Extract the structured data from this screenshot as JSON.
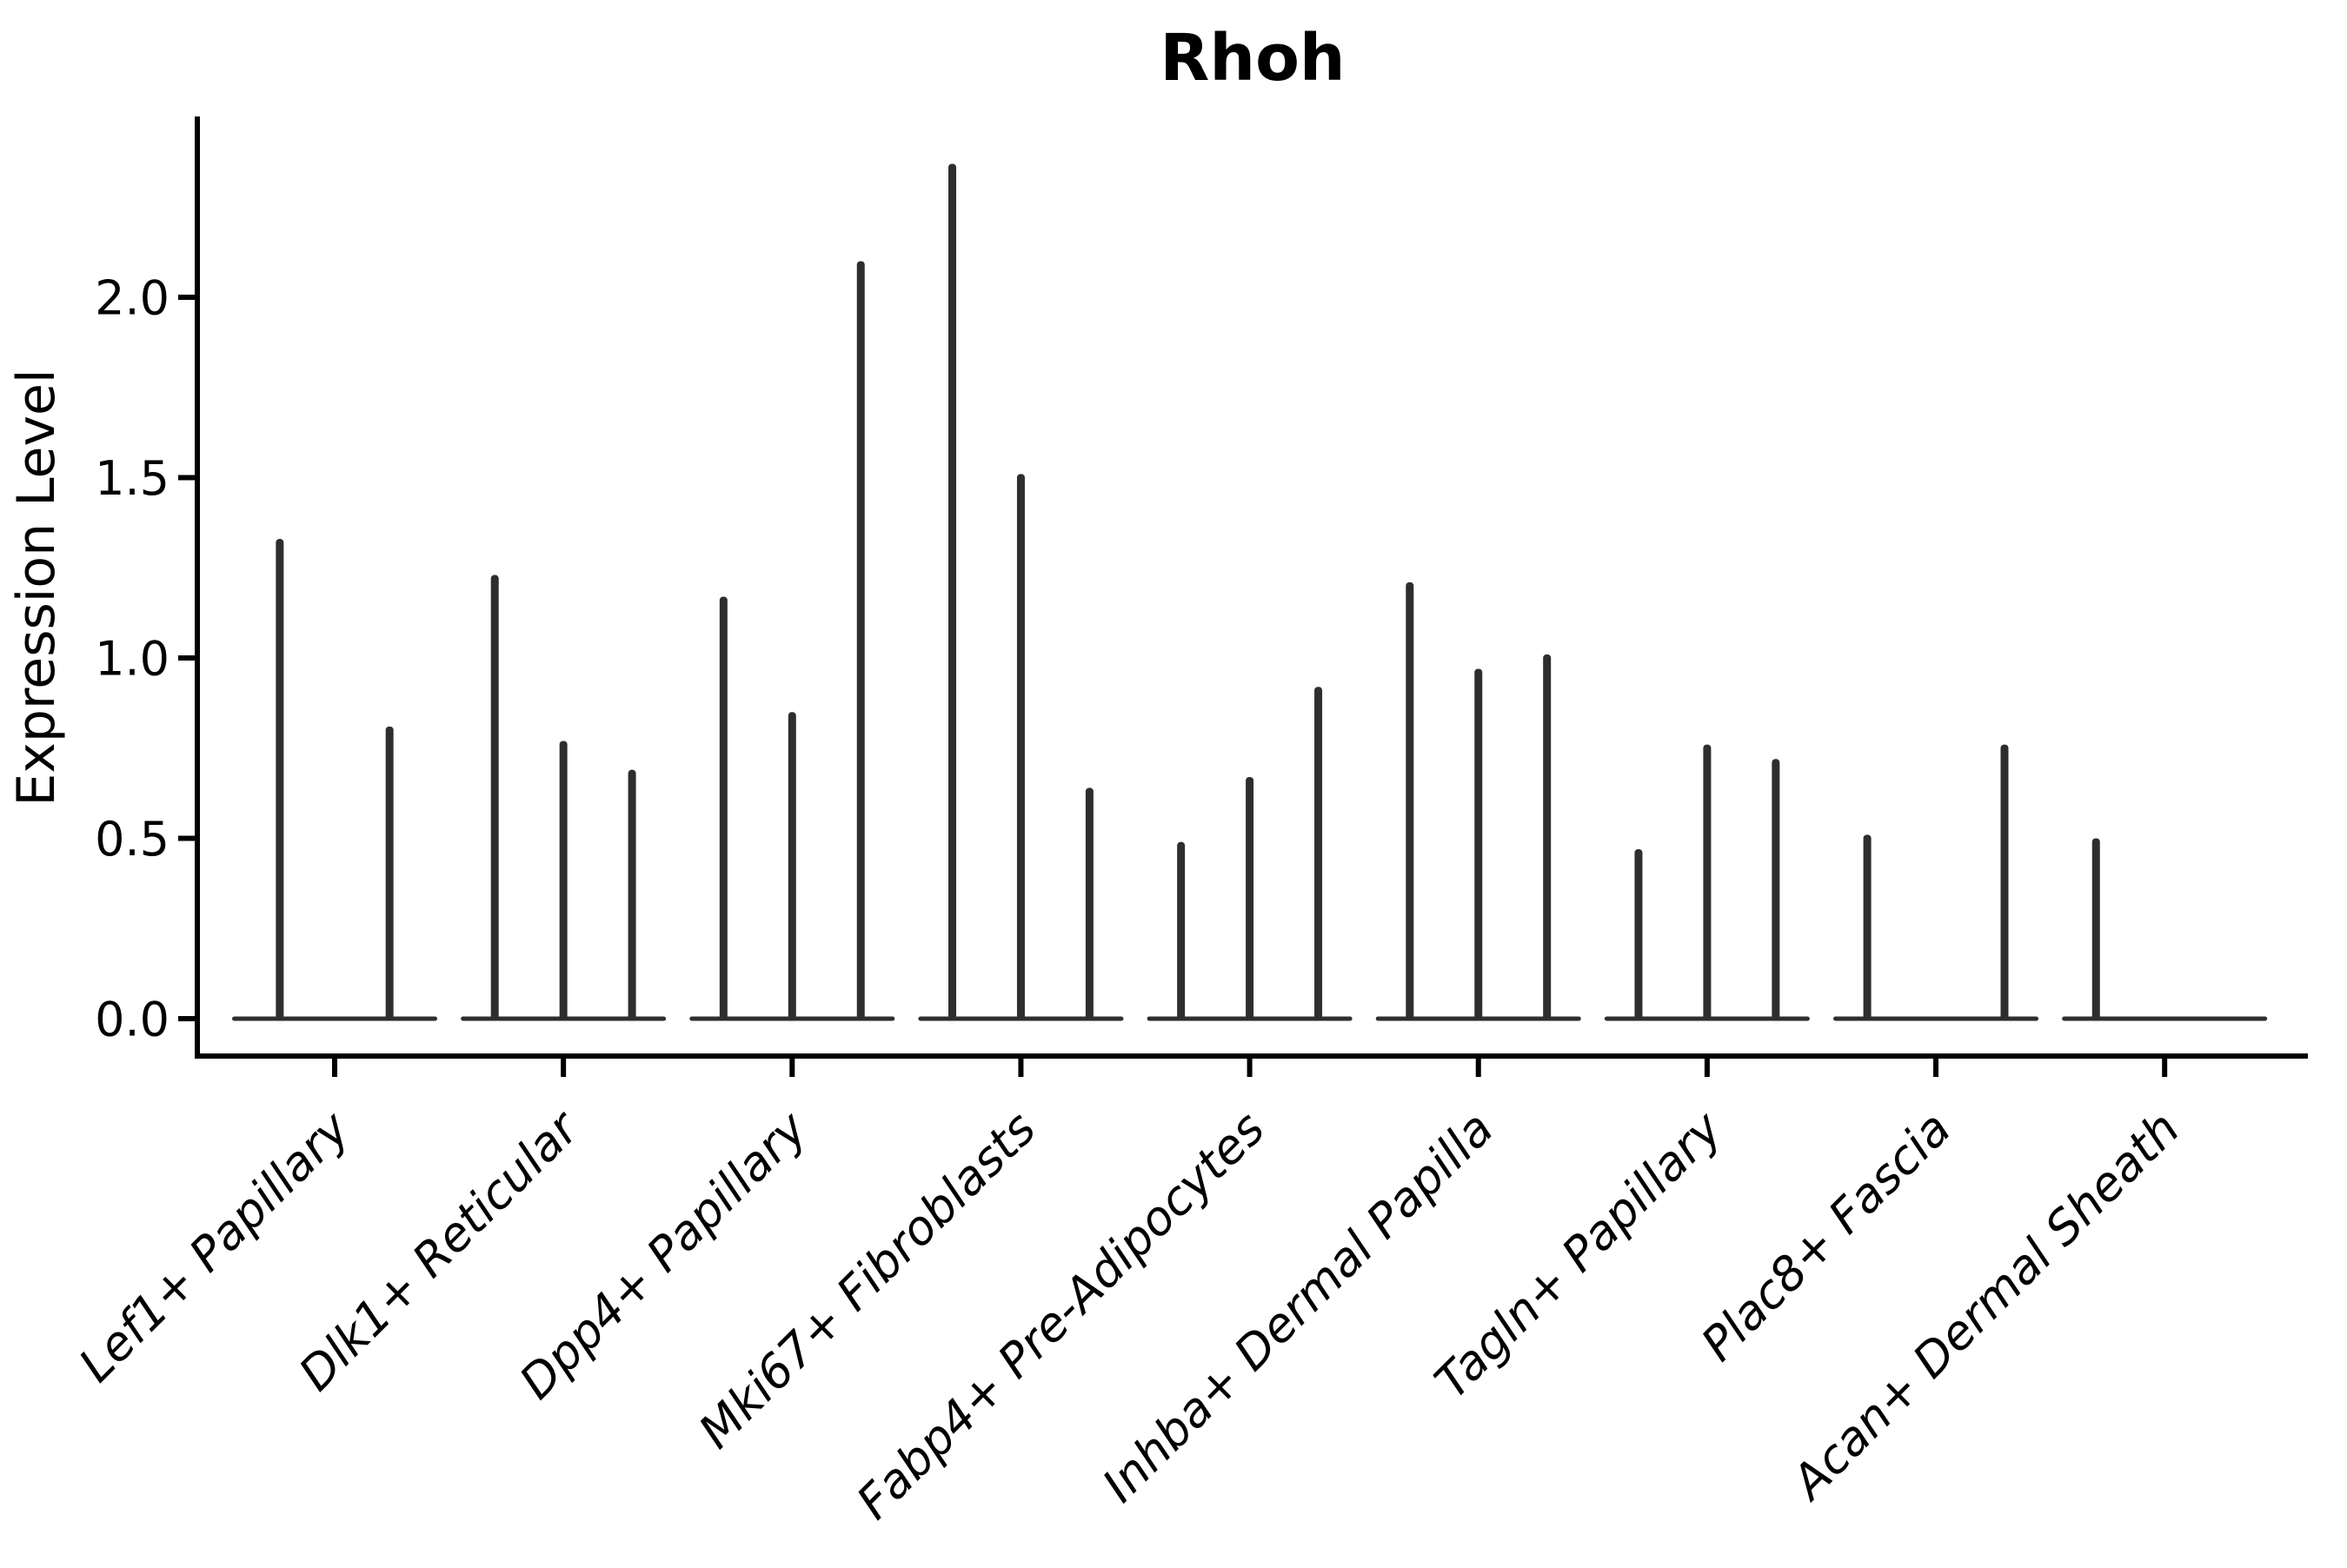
{
  "chart_data": {
    "type": "violin",
    "title": "Rhoh",
    "ylabel": "Expression Level",
    "xlabel": "",
    "grid": false,
    "legend": false,
    "x_tick_rotation": 45,
    "ink_color": "#2e2e2e",
    "axis_color": "#000000",
    "ylim": [
      -0.1,
      2.5
    ],
    "ytick_values": [
      0.0,
      0.5,
      1.0,
      1.5,
      2.0
    ],
    "ytick_labels": [
      "0.0",
      "0.5",
      "1.0",
      "1.5",
      "2.0"
    ],
    "categories": [
      "Lef1+ Papillary",
      "Dlk1+ Reticular",
      "Dpp4+ Papillary",
      "Mki67+ Fibroblasts",
      "Fabp4+ Pre-Adipocytes",
      "Inhba+ Dermal Papilla",
      "Tagln+ Papillary",
      "Plac8+ Fascia",
      "Acan+ Dermal Sheath"
    ],
    "groups": [
      {
        "category": "Lef1+ Papillary",
        "violins": [
          {
            "slot": -0.24,
            "max": 1.33
          },
          {
            "slot": 0.24,
            "max": 0.81
          }
        ]
      },
      {
        "category": "Dlk1+ Reticular",
        "violins": [
          {
            "slot": -0.3,
            "max": 1.23
          },
          {
            "slot": 0.0,
            "max": 0.77
          },
          {
            "slot": 0.3,
            "max": 0.69
          }
        ]
      },
      {
        "category": "Dpp4+ Papillary",
        "violins": [
          {
            "slot": -0.3,
            "max": 1.17
          },
          {
            "slot": 0.0,
            "max": 0.85
          },
          {
            "slot": 0.3,
            "max": 2.1
          }
        ]
      },
      {
        "category": "Mki67+ Fibroblasts",
        "violins": [
          {
            "slot": -0.3,
            "max": 2.37
          },
          {
            "slot": 0.0,
            "max": 1.51
          },
          {
            "slot": 0.3,
            "max": 0.64
          }
        ]
      },
      {
        "category": "Fabp4+ Pre-Adipocytes",
        "violins": [
          {
            "slot": -0.3,
            "max": 0.49
          },
          {
            "slot": 0.0,
            "max": 0.67
          },
          {
            "slot": 0.3,
            "max": 0.92
          }
        ]
      },
      {
        "category": "Inhba+ Dermal Papilla",
        "violins": [
          {
            "slot": -0.3,
            "max": 1.21
          },
          {
            "slot": 0.0,
            "max": 0.97
          },
          {
            "slot": 0.3,
            "max": 1.01
          }
        ]
      },
      {
        "category": "Tagln+ Papillary",
        "violins": [
          {
            "slot": -0.3,
            "max": 0.47
          },
          {
            "slot": 0.0,
            "max": 0.76
          },
          {
            "slot": 0.3,
            "max": 0.72
          }
        ]
      },
      {
        "category": "Plac8+ Fascia",
        "violins": [
          {
            "slot": -0.3,
            "max": 0.51
          },
          {
            "slot": 0.3,
            "max": 0.76
          }
        ]
      },
      {
        "category": "Acan+ Dermal Sheath",
        "violins": [
          {
            "slot": -0.3,
            "max": 0.5
          }
        ]
      }
    ]
  }
}
